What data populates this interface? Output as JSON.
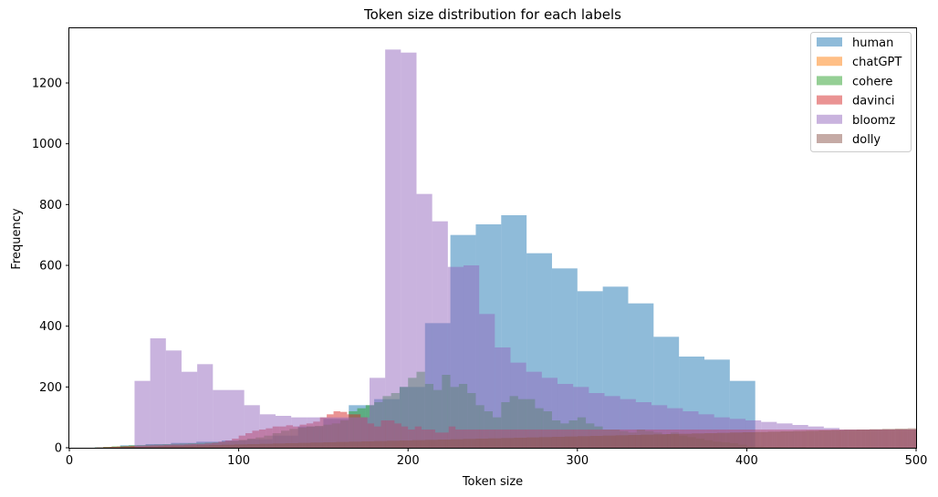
{
  "chart_data": {
    "type": "histogram",
    "title": "Token size distribution for each labels",
    "xlabel": "Token size",
    "ylabel": "Frequency",
    "xlim": [
      0,
      500
    ],
    "ylim": [
      0,
      1380
    ],
    "xticks": [
      "0",
      "100",
      "200",
      "300",
      "400",
      "500"
    ],
    "yticks": [
      "0",
      "200",
      "400",
      "600",
      "800",
      "1000",
      "1200"
    ],
    "grid": false,
    "legend_position": "top-right",
    "series": [
      {
        "name": "human",
        "color": "#1f77b4",
        "bin_start": 0,
        "bin_width": 15,
        "values": [
          0,
          1,
          8,
          12,
          16,
          20,
          24,
          28,
          40,
          70,
          95,
          140,
          160,
          200,
          410,
          700,
          735,
          765,
          640,
          590,
          515,
          530,
          475,
          365,
          300,
          290,
          220,
          0
        ]
      },
      {
        "name": "chatGPT",
        "color": "#ff7f0e",
        "bin_start": 0,
        "bin_width": 4.5,
        "values": [
          0,
          0,
          0,
          0,
          0,
          0,
          0,
          0,
          0,
          0,
          0,
          0,
          0,
          0,
          0,
          0,
          0,
          0,
          0,
          0,
          0,
          0,
          0,
          0,
          0,
          0,
          0,
          0,
          0,
          0,
          0,
          0,
          0,
          0,
          0,
          0,
          0,
          0,
          0,
          0,
          0,
          0,
          0,
          0,
          0,
          0,
          0,
          0,
          0,
          0,
          0,
          0,
          0,
          0,
          0,
          0,
          0,
          0,
          0,
          0,
          0,
          0,
          0,
          0,
          0,
          0,
          0,
          0,
          0,
          0,
          0,
          0,
          0,
          0,
          0,
          0,
          0,
          0,
          0,
          0,
          0,
          0,
          0,
          0,
          0,
          0,
          0,
          0,
          0,
          0,
          0,
          0,
          0,
          0,
          0,
          0,
          0,
          0,
          0,
          0,
          0,
          0,
          0,
          0,
          0,
          0,
          0,
          0,
          0,
          0,
          0,
          0,
          0,
          0,
          0,
          0,
          0,
          0,
          0,
          0,
          0,
          0,
          0,
          0,
          0,
          0,
          0,
          0,
          0,
          0,
          0,
          0,
          0,
          0,
          0,
          0,
          0,
          0,
          0,
          0,
          0,
          0,
          0,
          0,
          0,
          0,
          0,
          0,
          0,
          0,
          0,
          0,
          0,
          0,
          0,
          0,
          0,
          0,
          0,
          0,
          0,
          0,
          0,
          0,
          0,
          0,
          0,
          0,
          0,
          0,
          0,
          0,
          0,
          0,
          0,
          0,
          0,
          0,
          0,
          0,
          0,
          0,
          0,
          0,
          0,
          0,
          0,
          0,
          0,
          0,
          0,
          0,
          0,
          0,
          0,
          0,
          0,
          0,
          0,
          0,
          0,
          0,
          0,
          0,
          0,
          0,
          0,
          0,
          0,
          0,
          0,
          0,
          0,
          0,
          0,
          0,
          0,
          0,
          0,
          0,
          0,
          0,
          0,
          0,
          0,
          0,
          0,
          0,
          0,
          0,
          0,
          0,
          0,
          0,
          0,
          0,
          0,
          0,
          0,
          0,
          0,
          0,
          0,
          0,
          0,
          0,
          0,
          0,
          0,
          0,
          0,
          0,
          0,
          0,
          0,
          0,
          0,
          0,
          0,
          0,
          0,
          0,
          0,
          0,
          0,
          0,
          0,
          0,
          0,
          0,
          0,
          0,
          0,
          0,
          0,
          0,
          0,
          0,
          0,
          0,
          0,
          0,
          0,
          0
        ]
      },
      {
        "name": "cohere",
        "color": "#2ca02c",
        "bin_start": 0,
        "bin_width": 5,
        "values": [
          0,
          0,
          0,
          1,
          3,
          5,
          6,
          8,
          9,
          10,
          11,
          12,
          13,
          14,
          15,
          16,
          17,
          18,
          20,
          22,
          26,
          30,
          34,
          40,
          48,
          56,
          62,
          66,
          70,
          72,
          76,
          80,
          90,
          120,
          130,
          140,
          150,
          170,
          180,
          200,
          230,
          250,
          210,
          190,
          240,
          200,
          210,
          180,
          140,
          120,
          100,
          150,
          170,
          160,
          160,
          130,
          120,
          90,
          80,
          90,
          100,
          80,
          70,
          60,
          60,
          55,
          50,
          60,
          55,
          50,
          45,
          50,
          40,
          35,
          30,
          25,
          20,
          18,
          15,
          10,
          5,
          4,
          3,
          3,
          2,
          2,
          2,
          1,
          1,
          1,
          1,
          1,
          0,
          0,
          0,
          0,
          0,
          0,
          0,
          0
        ]
      },
      {
        "name": "davinci",
        "color": "#d62728",
        "bin_start": 0,
        "bin_width": 4,
        "values": [
          0,
          0,
          0,
          0,
          1,
          2,
          3,
          4,
          5,
          6,
          6,
          7,
          8,
          8,
          9,
          10,
          10,
          11,
          12,
          12,
          14,
          16,
          20,
          24,
          30,
          40,
          48,
          56,
          60,
          64,
          70,
          70,
          74,
          70,
          76,
          80,
          86,
          100,
          110,
          120,
          118,
          110,
          110,
          100,
          80,
          70,
          90,
          90,
          80,
          70,
          60,
          70,
          60,
          60,
          50,
          50,
          70,
          60,
          60,
          60,
          60,
          60,
          60,
          60,
          60,
          60,
          60,
          60,
          60,
          60,
          60,
          60,
          60,
          60,
          60,
          60,
          60,
          60,
          60,
          60,
          60,
          60,
          60,
          60,
          60,
          60,
          60,
          60,
          60,
          60,
          60,
          60,
          60,
          60,
          60,
          60,
          60,
          60,
          60,
          60,
          60,
          60,
          60,
          60,
          60,
          60,
          60,
          60,
          60,
          60,
          60,
          60,
          60,
          60,
          60,
          60,
          60,
          60,
          60,
          60,
          60,
          60,
          60,
          60,
          60,
          60
        ]
      },
      {
        "name": "bloomz",
        "color": "#9467bd",
        "bin_start": 38.5,
        "bin_width": 9.25,
        "values": [
          220,
          360,
          320,
          250,
          275,
          190,
          190,
          140,
          110,
          105,
          100,
          100,
          100,
          100,
          100,
          230,
          1310,
          1300,
          835,
          745,
          595,
          600,
          440,
          330,
          280,
          250,
          230,
          210,
          200,
          180,
          170,
          160,
          150,
          140,
          130,
          120,
          110,
          100,
          95,
          90,
          85,
          80,
          75,
          70,
          65,
          60,
          60,
          60,
          60,
          60,
          60
        ]
      },
      {
        "name": "dolly",
        "color": "#8c564b",
        "bin_start": 0,
        "bin_width": 2.5,
        "values": [
          0,
          0,
          0,
          0,
          0,
          0,
          0,
          0,
          0,
          1,
          1,
          1,
          2,
          2,
          2,
          3,
          3,
          3,
          4,
          4,
          4,
          5,
          5,
          5,
          6,
          6,
          6,
          7,
          7,
          7,
          8,
          8,
          8,
          9,
          9,
          9,
          10,
          10,
          10,
          11,
          11,
          11,
          12,
          12,
          12,
          13,
          13,
          13,
          14,
          14,
          14,
          15,
          15,
          15,
          16,
          16,
          16,
          17,
          17,
          17,
          18,
          18,
          18,
          19,
          19,
          19,
          20,
          20,
          20,
          21,
          21,
          21,
          22,
          22,
          22,
          23,
          23,
          23,
          24,
          24,
          24,
          25,
          25,
          25,
          26,
          26,
          26,
          27,
          27,
          27,
          28,
          28,
          28,
          29,
          29,
          29,
          30,
          30,
          30,
          31,
          31,
          31,
          32,
          32,
          32,
          33,
          33,
          33,
          34,
          34,
          34,
          35,
          35,
          35,
          36,
          36,
          36,
          37,
          37,
          37,
          38,
          38,
          38,
          39,
          39,
          39,
          40,
          40,
          40,
          41,
          41,
          41,
          42,
          42,
          42,
          43,
          43,
          43,
          44,
          44,
          44,
          45,
          45,
          45,
          46,
          46,
          46,
          47,
          47,
          47,
          48,
          48,
          48,
          49,
          49,
          49,
          50,
          50,
          50,
          51,
          51,
          51,
          52,
          52,
          52,
          53,
          53,
          53,
          54,
          54,
          54,
          55,
          55,
          55,
          56,
          56,
          56,
          57,
          57,
          57,
          58,
          58,
          58,
          59,
          59,
          59,
          60,
          60,
          60,
          61,
          61,
          61,
          62,
          62,
          62,
          63,
          63,
          63,
          64,
          64,
          64,
          65,
          65,
          65,
          66,
          66,
          66,
          67,
          67,
          67,
          68,
          68,
          68,
          69,
          69,
          69,
          70,
          70,
          70
        ]
      }
    ]
  }
}
